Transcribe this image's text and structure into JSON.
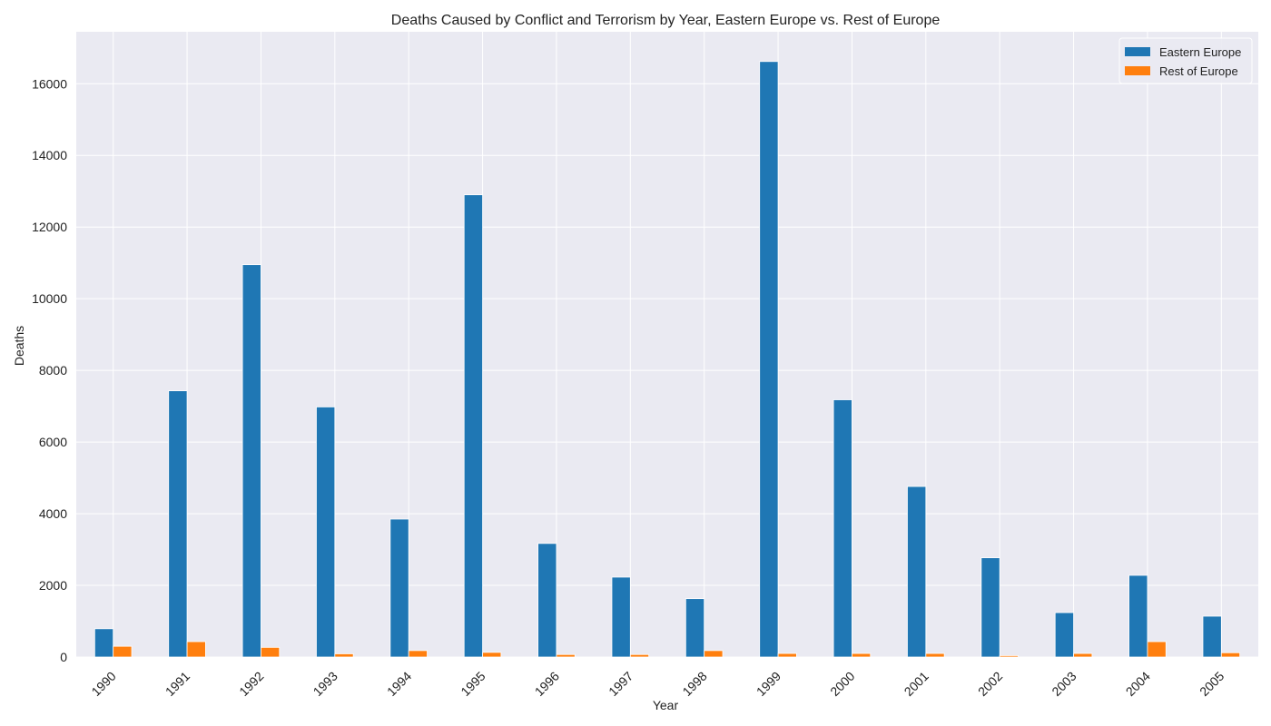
{
  "chart_data": {
    "type": "bar",
    "title": "Deaths Caused by Conflict and Terrorism by Year, Eastern Europe vs. Rest of Europe",
    "xlabel": "Year",
    "ylabel": "Deaths",
    "categories": [
      "1990",
      "1991",
      "1992",
      "1993",
      "1994",
      "1995",
      "1996",
      "1997",
      "1998",
      "1999",
      "2000",
      "2001",
      "2002",
      "2003",
      "2004",
      "2005"
    ],
    "series": [
      {
        "name": "Eastern Europe",
        "color": "#1f77b4",
        "values": [
          790,
          7430,
          10950,
          6980,
          3850,
          12900,
          3170,
          2230,
          1630,
          16620,
          7180,
          4760,
          2770,
          1240,
          2280,
          1140
        ]
      },
      {
        "name": "Rest of Europe",
        "color": "#ff7f0e",
        "values": [
          300,
          430,
          270,
          90,
          180,
          130,
          70,
          70,
          180,
          100,
          100,
          100,
          40,
          100,
          430,
          120
        ]
      }
    ],
    "ylim": [
      0,
      17450
    ],
    "yticks": [
      0,
      2000,
      4000,
      6000,
      8000,
      10000,
      12000,
      14000,
      16000
    ],
    "grid": true,
    "legend_position": "top-right",
    "background": "#eaeaf2",
    "grid_color": "#ffffff"
  }
}
